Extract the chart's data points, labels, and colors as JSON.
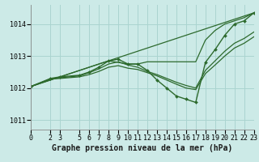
{
  "title": "Graphe pression niveau de la mer (hPa)",
  "bg_color": "#cceae7",
  "grid_color": "#aad4d0",
  "line_color": "#2d6a2d",
  "ylim": [
    1010.7,
    1014.6
  ],
  "xlim": [
    0,
    23
  ],
  "yticks": [
    1011,
    1012,
    1013,
    1014
  ],
  "xticks": [
    0,
    2,
    3,
    5,
    6,
    7,
    8,
    9,
    10,
    11,
    12,
    13,
    14,
    15,
    16,
    17,
    18,
    19,
    20,
    21,
    22,
    23
  ],
  "series": [
    {
      "x": [
        0,
        2,
        3,
        5,
        6,
        7,
        8,
        9,
        10,
        11,
        12,
        13,
        14,
        15,
        16,
        17,
        18,
        19,
        20,
        21,
        22,
        23
      ],
      "y": [
        1012.05,
        1012.3,
        1012.35,
        1012.4,
        1012.5,
        1012.65,
        1012.85,
        1012.9,
        1012.75,
        1012.75,
        1012.55,
        1012.25,
        1012.0,
        1011.75,
        1011.65,
        1011.55,
        1012.8,
        1013.2,
        1013.65,
        1014.0,
        1014.1,
        1014.35
      ],
      "marker": true,
      "lw": 1.0
    },
    {
      "x": [
        0,
        2,
        3,
        5,
        6,
        7,
        8,
        9,
        10,
        11,
        12,
        13,
        14,
        15,
        16,
        17,
        18,
        19,
        20,
        21,
        22,
        23
      ],
      "y": [
        1012.05,
        1012.28,
        1012.32,
        1012.38,
        1012.48,
        1012.6,
        1012.75,
        1012.82,
        1012.72,
        1012.65,
        1012.52,
        1012.42,
        1012.3,
        1012.18,
        1012.08,
        1012.0,
        1012.55,
        1012.85,
        1013.15,
        1013.4,
        1013.55,
        1013.75
      ],
      "marker": false,
      "lw": 0.9
    },
    {
      "x": [
        0,
        23
      ],
      "y": [
        1012.05,
        1014.35
      ],
      "marker": false,
      "lw": 0.9
    },
    {
      "x": [
        0,
        8,
        10,
        11,
        12,
        13,
        14,
        15,
        16,
        17,
        18,
        19,
        20,
        21,
        22,
        23
      ],
      "y": [
        1012.05,
        1012.85,
        1012.75,
        1012.75,
        1012.82,
        1012.82,
        1012.82,
        1012.82,
        1012.82,
        1012.82,
        1013.5,
        1013.8,
        1014.0,
        1014.1,
        1014.2,
        1014.35
      ],
      "marker": false,
      "lw": 0.9
    },
    {
      "x": [
        0,
        2,
        3,
        5,
        6,
        7,
        8,
        9,
        10,
        11,
        12,
        13,
        14,
        15,
        16,
        17,
        18,
        19,
        20,
        21,
        22,
        23
      ],
      "y": [
        1012.05,
        1012.28,
        1012.3,
        1012.35,
        1012.42,
        1012.52,
        1012.65,
        1012.7,
        1012.62,
        1012.58,
        1012.48,
        1012.38,
        1012.25,
        1012.12,
        1012.0,
        1011.95,
        1012.45,
        1012.72,
        1013.0,
        1013.25,
        1013.4,
        1013.6
      ],
      "marker": false,
      "lw": 0.9
    }
  ],
  "xlabel_fontsize": 7.0,
  "tick_fontsize": 6.0,
  "font_family": "monospace"
}
